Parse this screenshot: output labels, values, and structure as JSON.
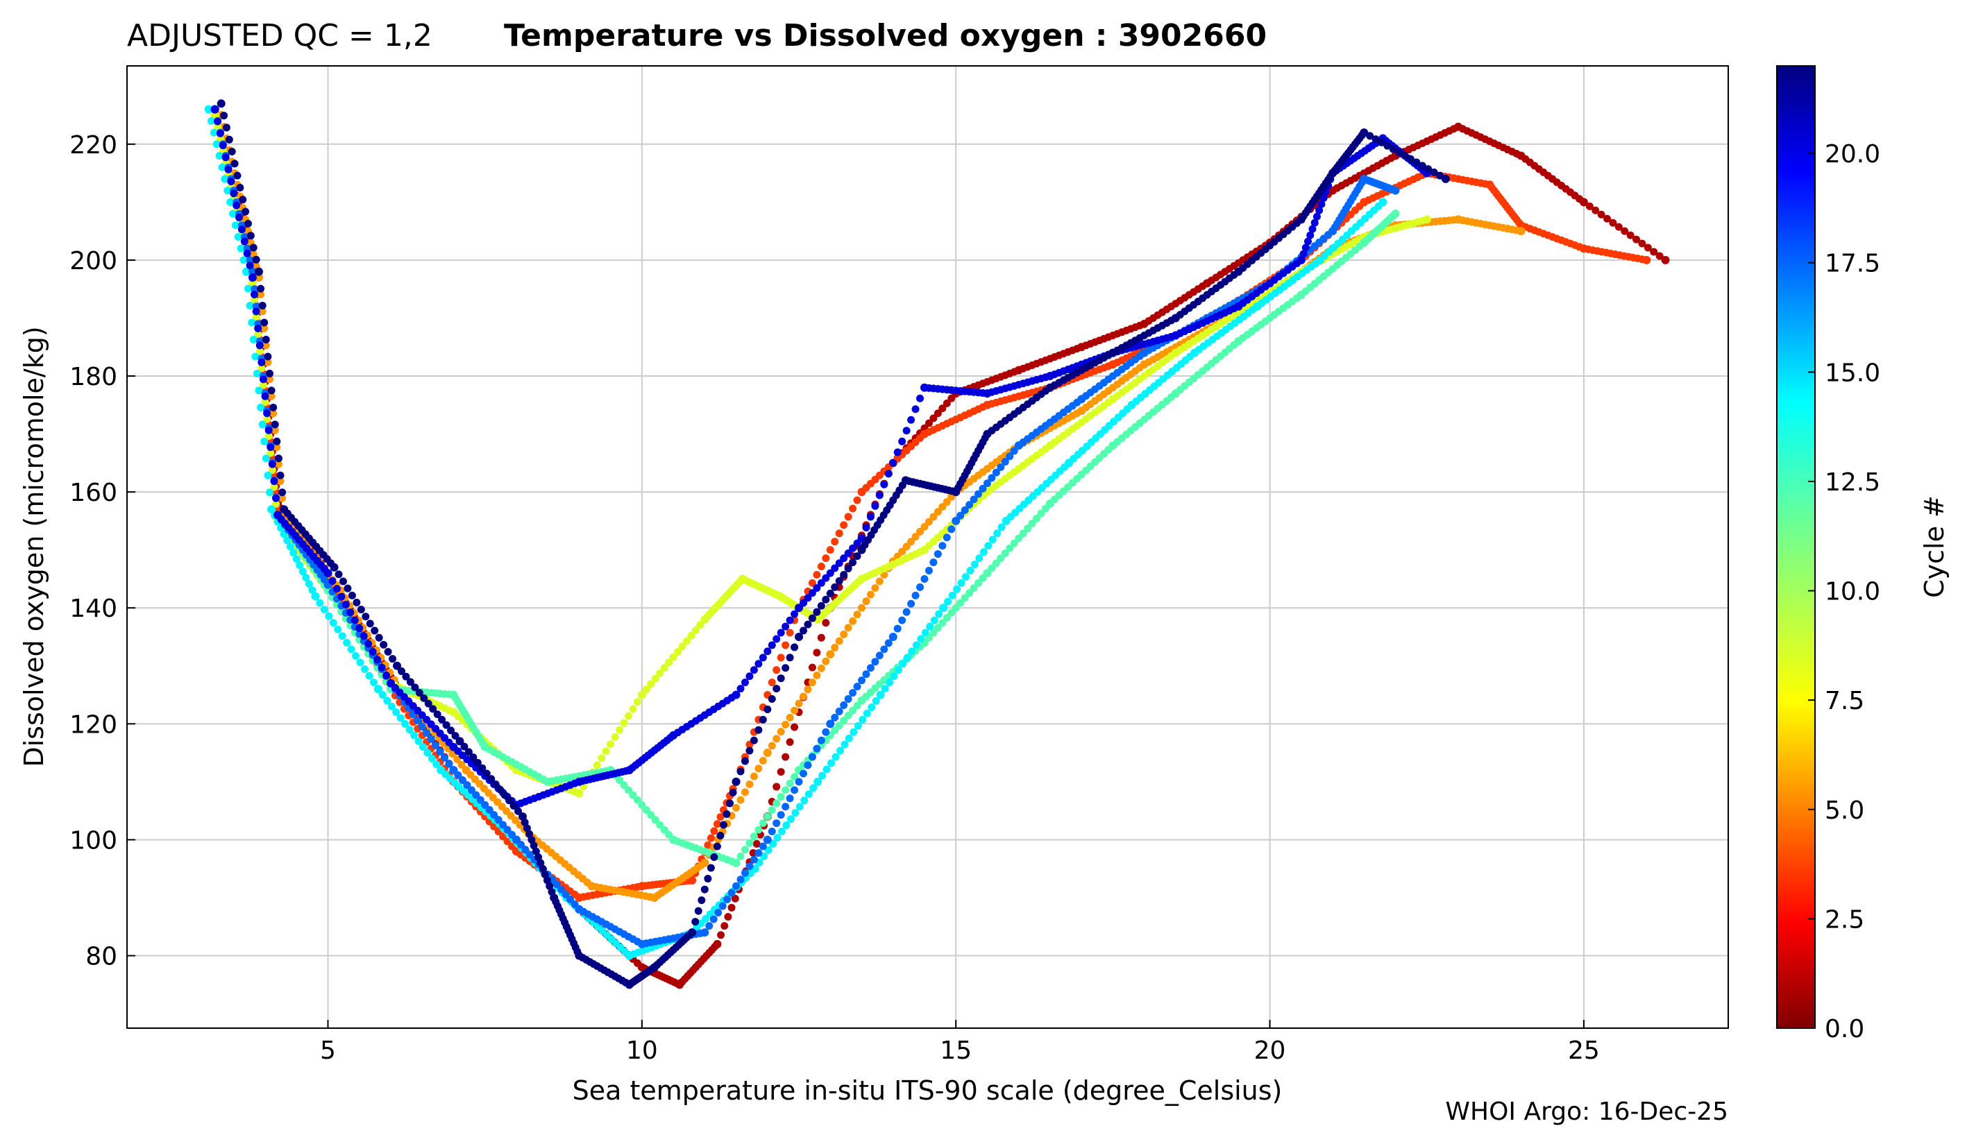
{
  "chart_data": {
    "type": "scatter",
    "title_prefix": "ADJUSTED QC = 1,2",
    "title": "Temperature vs Dissolved oxygen : 3902660",
    "xlabel": "Sea temperature in-situ ITS-90 scale  (degree_Celsius)",
    "ylabel": "Dissolved oxygen  (micromole/kg)",
    "xlim": [
      1.8,
      27.3
    ],
    "ylim": [
      67.5,
      233.5
    ],
    "xticks": [
      5,
      10,
      15,
      20,
      25
    ],
    "yticks": [
      80,
      100,
      120,
      140,
      160,
      180,
      200,
      220
    ],
    "xtick_labels": [
      "5",
      "10",
      "15",
      "20",
      "25"
    ],
    "ytick_labels": [
      "80",
      "100",
      "120",
      "140",
      "160",
      "180",
      "200",
      "220"
    ],
    "grid": true,
    "colorbar": {
      "label": "Cycle #",
      "colormap": "jet",
      "range": [
        0,
        22
      ],
      "ticks": [
        0,
        2.5,
        5,
        7.5,
        10,
        12.5,
        15,
        17.5,
        20
      ],
      "tick_labels": [
        "0.0",
        "2.5",
        "5.0",
        "7.5",
        "10.0",
        "12.5",
        "15.0",
        "17.5",
        "20.0"
      ]
    },
    "series": [
      {
        "name": "cycle 1",
        "cycle": 1,
        "x": [
          3.2,
          3.8,
          4.2,
          5.0,
          6.0,
          7.0,
          8.0,
          9.0,
          10.0,
          10.6,
          11.2,
          12.0,
          13.0,
          14.0,
          15.0,
          16.0,
          17.0,
          18.0,
          19.0,
          20.0,
          21.0,
          22.0,
          23.0,
          24.0,
          25.0,
          26.3
        ],
        "y": [
          226,
          200,
          158,
          146,
          128,
          112,
          100,
          88,
          78,
          75,
          82,
          104,
          140,
          165,
          177,
          181,
          185,
          189,
          196,
          203,
          212,
          218,
          223,
          218,
          210,
          200
        ]
      },
      {
        "name": "cycle 4",
        "cycle": 4,
        "x": [
          3.2,
          3.8,
          4.2,
          5.0,
          6.0,
          7.0,
          8.0,
          9.0,
          10.0,
          10.8,
          11.5,
          12.5,
          13.5,
          14.5,
          15.5,
          16.5,
          17.5,
          18.5,
          19.5,
          20.5,
          21.5,
          22.5,
          23.5,
          24.0,
          25.0,
          26.0
        ],
        "y": [
          226,
          198,
          157,
          145,
          126,
          110,
          98,
          90,
          92,
          93,
          110,
          140,
          160,
          170,
          175,
          178,
          182,
          187,
          193,
          200,
          210,
          215,
          213,
          206,
          202,
          200
        ]
      },
      {
        "name": "cycle 6",
        "cycle": 6,
        "x": [
          3.3,
          3.9,
          4.3,
          5.2,
          6.2,
          7.2,
          8.2,
          9.2,
          10.2,
          11.0,
          12.0,
          13.0,
          14.0,
          15.0,
          16.0,
          17.0,
          18.0,
          19.0,
          20.0,
          21.0,
          22.0,
          23.0,
          24.0
        ],
        "y": [
          225,
          197,
          156,
          143,
          125,
          112,
          101,
          92,
          90,
          96,
          115,
          132,
          148,
          160,
          168,
          174,
          182,
          188,
          194,
          202,
          206,
          207,
          205
        ]
      },
      {
        "name": "cycle 9",
        "cycle": 9,
        "x": [
          3.2,
          3.8,
          4.2,
          5.0,
          6.0,
          7.0,
          8.0,
          9.0,
          10.0,
          11.0,
          11.6,
          12.2,
          12.8,
          13.5,
          14.5,
          15.5,
          16.5,
          17.5,
          18.5,
          19.5,
          20.5,
          21.5,
          22.5
        ],
        "y": [
          225,
          196,
          155,
          143,
          127,
          122,
          112,
          108,
          125,
          138,
          145,
          142,
          138,
          145,
          150,
          160,
          168,
          176,
          184,
          191,
          198,
          204,
          207
        ]
      },
      {
        "name": "cycle 12",
        "cycle": 12,
        "x": [
          3.2,
          3.8,
          4.2,
          5.0,
          6.0,
          7.0,
          7.5,
          8.5,
          9.5,
          10.5,
          11.5,
          12.5,
          13.5,
          14.5,
          15.5,
          16.5,
          17.5,
          18.5,
          19.5,
          20.5,
          21.5,
          22.0
        ],
        "y": [
          226,
          197,
          156,
          143,
          126,
          125,
          116,
          110,
          112,
          100,
          96,
          112,
          124,
          134,
          146,
          158,
          168,
          177,
          186,
          194,
          203,
          208
        ]
      },
      {
        "name": "cycle 14",
        "cycle": 14,
        "x": [
          3.1,
          3.7,
          4.1,
          4.8,
          5.8,
          6.8,
          7.8,
          8.8,
          9.8,
          10.8,
          11.8,
          12.8,
          13.8,
          14.8,
          15.8,
          16.8,
          17.8,
          18.8,
          19.8,
          20.8,
          21.8
        ],
        "y": [
          226,
          198,
          157,
          142,
          126,
          112,
          102,
          90,
          80,
          84,
          95,
          110,
          125,
          140,
          155,
          165,
          175,
          184,
          192,
          200,
          210
        ]
      },
      {
        "name": "cycle 17",
        "cycle": 17,
        "x": [
          3.2,
          3.8,
          4.2,
          5.0,
          6.0,
          7.0,
          8.0,
          9.0,
          10.0,
          11.0,
          12.0,
          13.0,
          14.0,
          15.0,
          16.0,
          17.0,
          18.0,
          19.0,
          20.0,
          21.0,
          21.5,
          22.0
        ],
        "y": [
          226,
          198,
          156,
          144,
          127,
          112,
          100,
          88,
          82,
          84,
          100,
          120,
          135,
          155,
          168,
          176,
          184,
          190,
          196,
          205,
          214,
          212
        ]
      },
      {
        "name": "cycle 20",
        "cycle": 20,
        "x": [
          3.2,
          3.8,
          4.2,
          5.0,
          6.0,
          7.0,
          8.0,
          9.0,
          9.8,
          10.5,
          11.5,
          12.5,
          13.5,
          14.5,
          15.5,
          16.5,
          17.5,
          18.5,
          19.5,
          20.5,
          21.0,
          21.8,
          22.5
        ],
        "y": [
          226,
          197,
          156,
          146,
          127,
          116,
          106,
          110,
          112,
          118,
          125,
          140,
          152,
          178,
          177,
          180,
          184,
          187,
          192,
          200,
          215,
          221,
          215
        ]
      },
      {
        "name": "cycle 22",
        "cycle": 22,
        "x": [
          3.3,
          3.9,
          4.3,
          5.1,
          6.1,
          7.1,
          8.1,
          8.6,
          9.0,
          9.8,
          10.2,
          10.8,
          11.5,
          12.5,
          13.5,
          14.2,
          15.0,
          15.5,
          16.5,
          17.5,
          18.5,
          19.5,
          20.5,
          21.0,
          21.5,
          22.8
        ],
        "y": [
          227,
          198,
          157,
          147,
          130,
          117,
          104,
          90,
          80,
          75,
          78,
          84,
          110,
          135,
          150,
          162,
          160,
          170,
          178,
          184,
          190,
          198,
          207,
          215,
          222,
          214
        ]
      }
    ]
  },
  "footer": {
    "credit": "WHOI Argo: 16-Dec-25"
  }
}
